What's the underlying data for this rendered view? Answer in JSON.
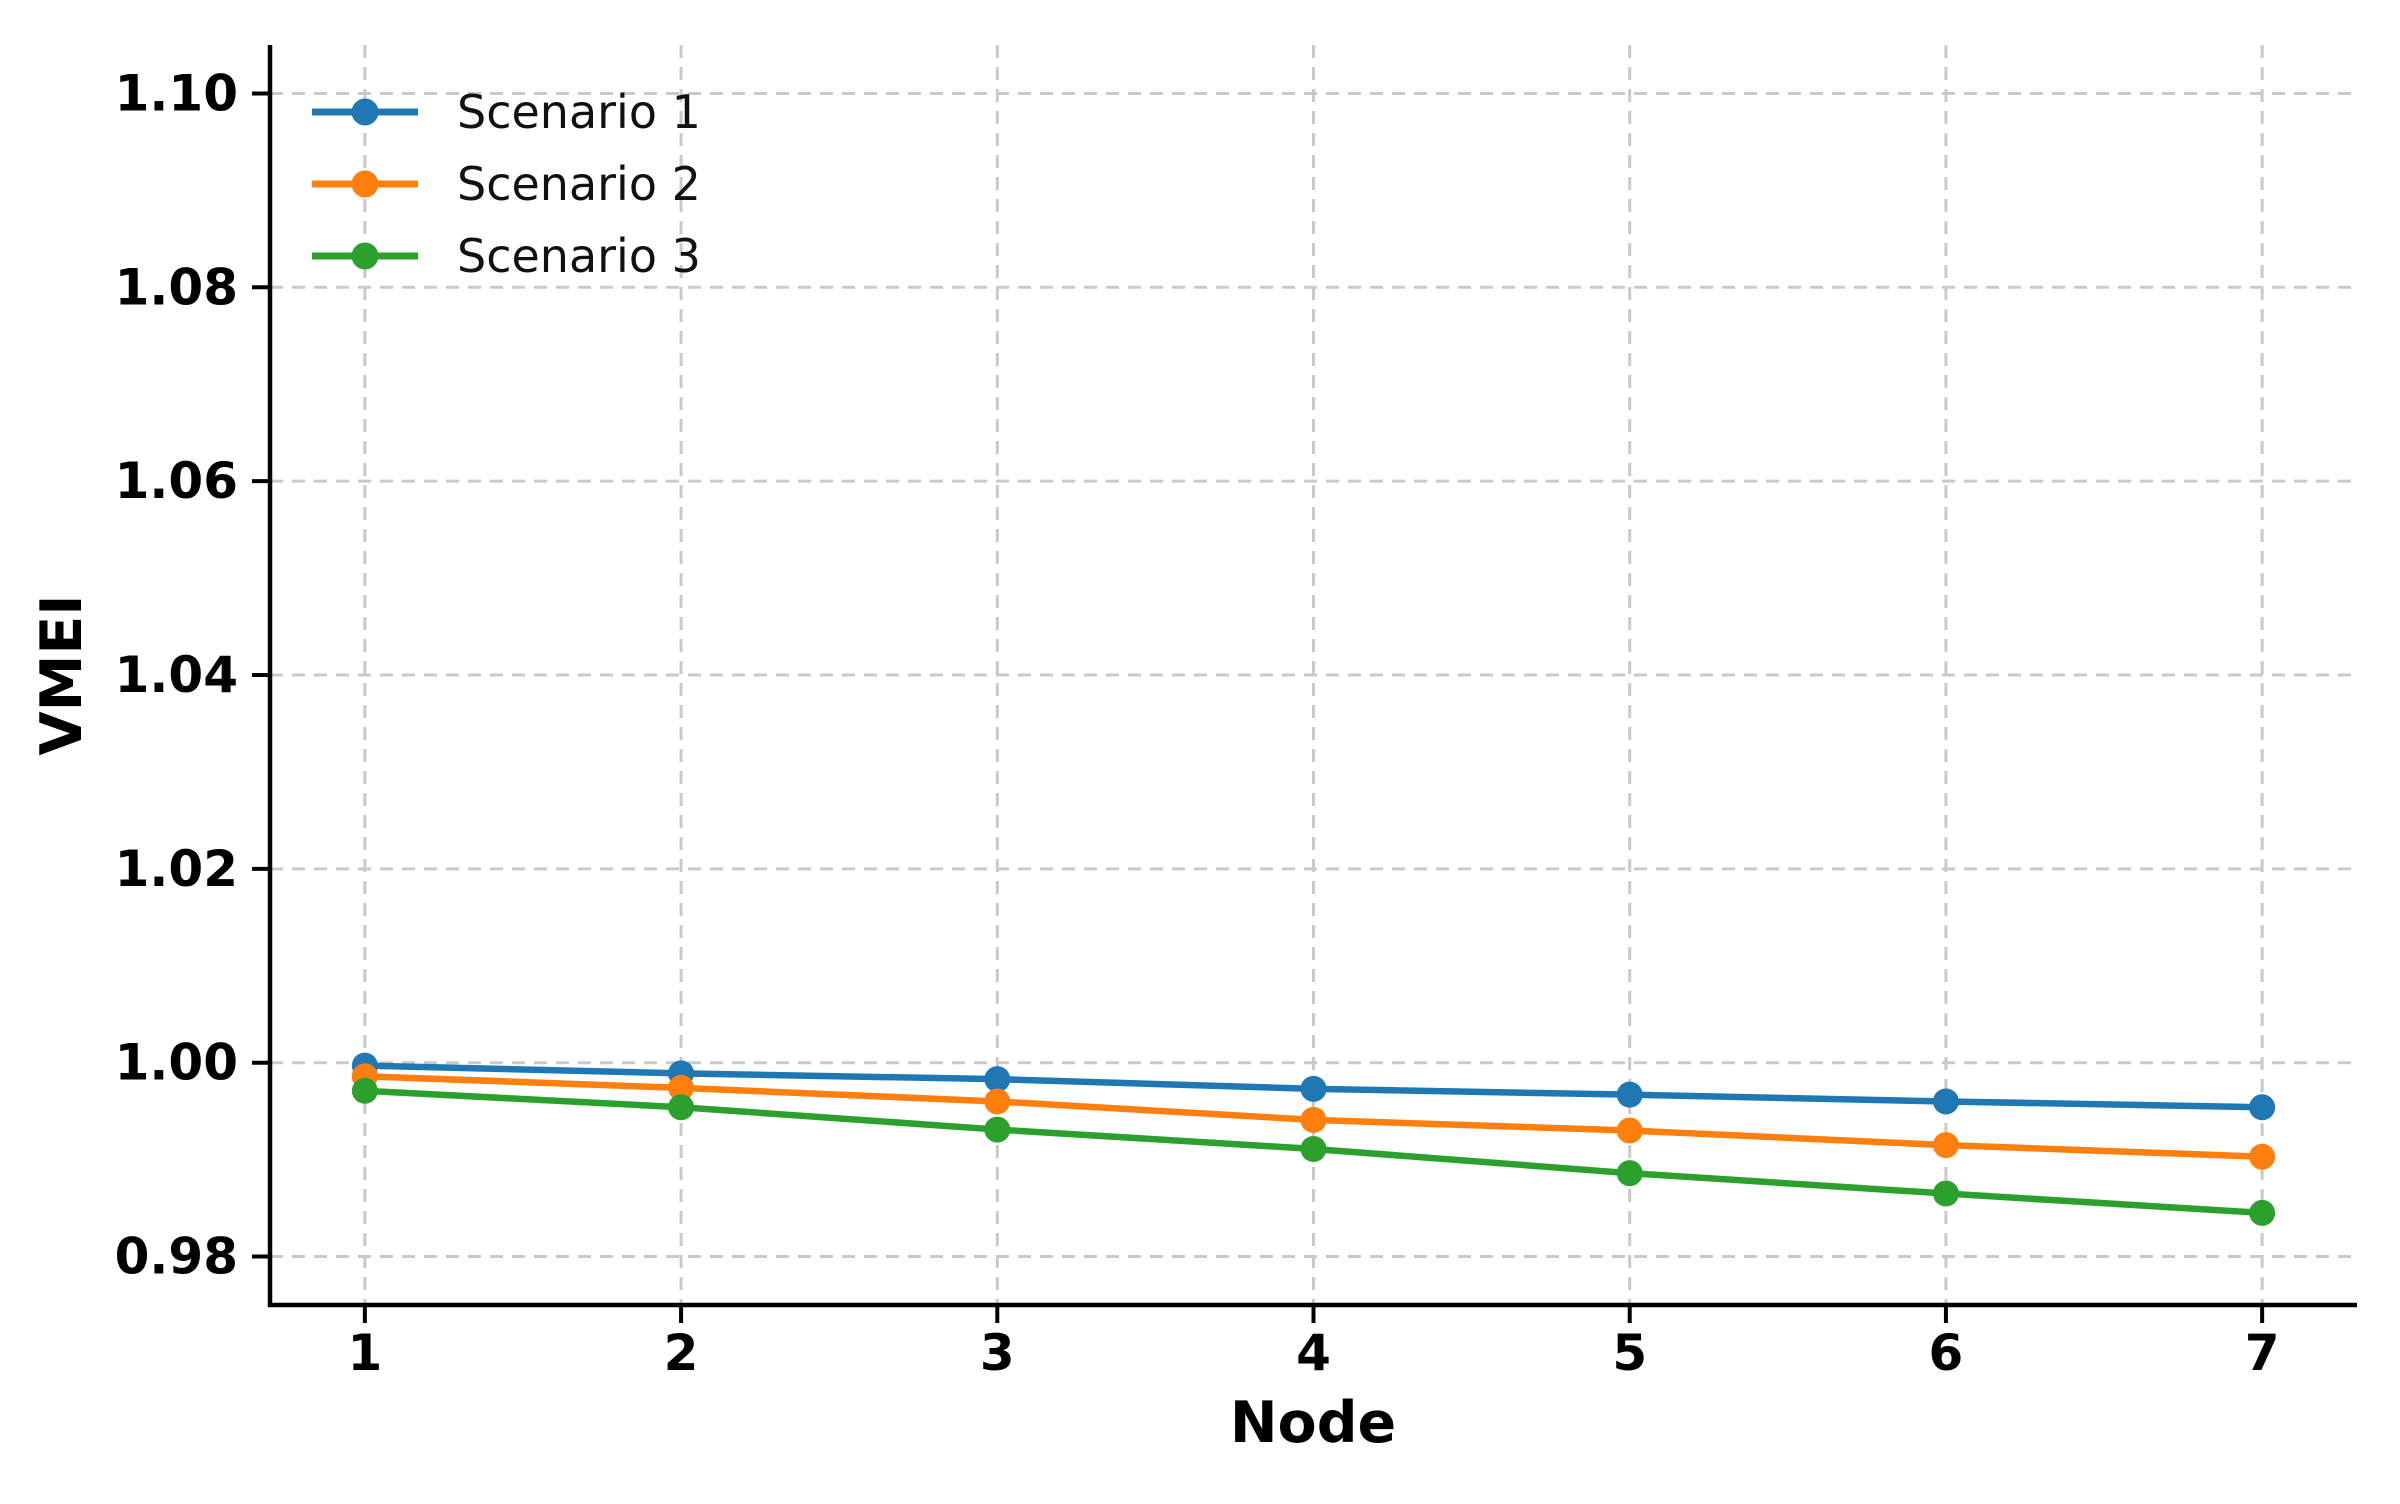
{
  "chart_data": {
    "type": "line",
    "title": "",
    "xlabel": "Node",
    "ylabel": "VMEI",
    "x": [
      1,
      2,
      3,
      4,
      5,
      6,
      7
    ],
    "series": [
      {
        "name": "Scenario 1",
        "color": "#1f77b4",
        "values": [
          0.9997,
          0.9989,
          0.9983,
          0.9973,
          0.9967,
          0.996,
          0.9954
        ]
      },
      {
        "name": "Scenario 2",
        "color": "#ff7f0e",
        "values": [
          0.9986,
          0.9974,
          0.996,
          0.9941,
          0.993,
          0.9915,
          0.9903
        ]
      },
      {
        "name": "Scenario 3",
        "color": "#2ca02c",
        "values": [
          0.9971,
          0.9954,
          0.9931,
          0.9911,
          0.9886,
          0.9865,
          0.9845
        ]
      }
    ],
    "xlim": [
      0.7,
      7.3
    ],
    "ylim": [
      0.975,
      1.105
    ],
    "xticks": [
      1,
      2,
      3,
      4,
      5,
      6,
      7
    ],
    "xtick_labels": [
      "1",
      "2",
      "3",
      "4",
      "5",
      "6",
      "7"
    ],
    "yticks": [
      0.98,
      1.0,
      1.02,
      1.04,
      1.06,
      1.08,
      1.1
    ],
    "ytick_labels": [
      "0.98",
      "1.00",
      "1.02",
      "1.04",
      "1.06",
      "1.08",
      "1.10"
    ],
    "grid": true,
    "grid_color": "#c9c9c9",
    "grid_dash": "13 9",
    "axis_color": "#000000",
    "legend_position": "upper-left"
  }
}
